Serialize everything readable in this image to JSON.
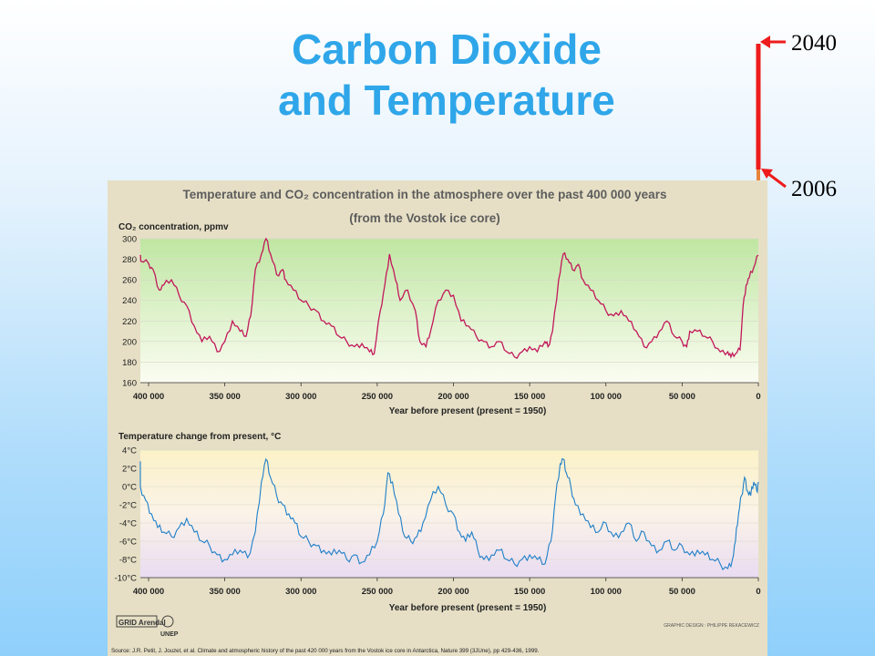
{
  "slide": {
    "title_line1": "Carbon Dioxide",
    "title_line2": "and Temperature",
    "year_top": "2040",
    "year_bottom": "2006"
  },
  "colors": {
    "title": "#2fa6e9",
    "co2_line": "#c2185b",
    "temp_line": "#1e7fc8",
    "annotation_red": "#ee1c1c",
    "annotation_orange": "#e8833a"
  },
  "figure": {
    "title_line1": "Temperature and CO₂ concentration in the atmosphere over the past 400 000 years",
    "title_line2": "(from the Vostok ice core)",
    "source": "Source: J.R. Petit, J. Jouzel, et al. Climate and atmospheric history of the past 420 000 years from the Vostok ice core in Antarctica, Nature 399 (3JUne), pp 429-436, 1999.",
    "credit": "GRAPHIC DESIGN : PHILIPPE REKACEWICZ",
    "logo1": "GRID Arendal",
    "logo2": "UNEP"
  },
  "chart_data": [
    {
      "type": "line",
      "title": "CO₂ concentration, ppmv",
      "xlabel": "Year before present (present = 1950)",
      "ylabel": "CO₂ concentration, ppmv",
      "xlim": [
        400000,
        0
      ],
      "ylim": [
        160,
        300
      ],
      "xticks": [
        "400 000",
        "350 000",
        "300 000",
        "250 000",
        "200 000",
        "150 000",
        "100 000",
        "50 000",
        "0"
      ],
      "yticks": [
        "300",
        "280",
        "260",
        "240",
        "220",
        "200",
        "180",
        "160"
      ],
      "series": [
        {
          "x": [
            412000,
            405000,
            400000,
            397000,
            393000,
            390000,
            385000,
            380000,
            375000,
            370000,
            365000,
            360000,
            355000,
            350000,
            345000,
            340000,
            336000,
            333000,
            330000,
            326000,
            323000,
            320000,
            316000,
            312000,
            310000,
            305000,
            300000,
            295000,
            290000,
            285000,
            280000,
            275000,
            270000,
            265000,
            260000,
            255000,
            252000,
            248000,
            245000,
            242000,
            238000,
            235000,
            230000,
            225000,
            222000,
            218000,
            215000,
            210000,
            205000,
            200000,
            195000,
            190000,
            185000,
            180000,
            175000,
            170000,
            165000,
            160000,
            155000,
            150000,
            145000,
            140000,
            138000,
            135000,
            131000,
            128000,
            125000,
            122000,
            118000,
            115000,
            110000,
            105000,
            100000,
            95000,
            90000,
            85000,
            80000,
            75000,
            70000,
            65000,
            60000,
            55000,
            50000,
            47000,
            45000,
            40000,
            35000,
            30000,
            25000,
            20000,
            18000,
            15000,
            12000,
            10000,
            8000,
            6000,
            3000,
            0
          ],
          "y": [
            283,
            278,
            276,
            270,
            250,
            255,
            260,
            245,
            235,
            215,
            200,
            205,
            190,
            200,
            220,
            210,
            205,
            225,
            270,
            285,
            300,
            285,
            265,
            270,
            260,
            250,
            240,
            235,
            230,
            220,
            215,
            205,
            200,
            195,
            198,
            190,
            188,
            230,
            255,
            285,
            260,
            240,
            250,
            230,
            200,
            195,
            210,
            240,
            250,
            245,
            220,
            215,
            205,
            200,
            195,
            200,
            190,
            185,
            190,
            195,
            190,
            200,
            195,
            210,
            260,
            285,
            280,
            270,
            275,
            260,
            250,
            240,
            230,
            225,
            230,
            220,
            210,
            195,
            200,
            210,
            220,
            205,
            200,
            195,
            210,
            210,
            205,
            200,
            190,
            190,
            185,
            188,
            192,
            235,
            255,
            262,
            272,
            284
          ]
        }
      ]
    },
    {
      "type": "line",
      "title": "Temperature change from present, °C",
      "xlabel": "Year before present (present = 1950)",
      "ylabel": "Temperature change from present, °C",
      "xlim": [
        400000,
        0
      ],
      "ylim": [
        -10,
        4
      ],
      "xticks": [
        "400 000",
        "350 000",
        "300 000",
        "250 000",
        "200 000",
        "150 000",
        "100 000",
        "50 000",
        "0"
      ],
      "yticks": [
        "4°C",
        "2°C",
        "0°C",
        "-2°C",
        "-4°C",
        "-6°C",
        "-8°C",
        "-10°C"
      ],
      "series": [
        {
          "x": [
            412000,
            410000,
            406000,
            402000,
            398000,
            394000,
            390000,
            385000,
            380000,
            375000,
            370000,
            365000,
            360000,
            355000,
            350000,
            345000,
            340000,
            335000,
            330000,
            326000,
            323000,
            320000,
            316000,
            312000,
            308000,
            304000,
            300000,
            295000,
            290000,
            285000,
            280000,
            275000,
            270000,
            265000,
            260000,
            255000,
            250000,
            246000,
            243000,
            240000,
            236000,
            232000,
            228000,
            224000,
            220000,
            215000,
            210000,
            205000,
            200000,
            196000,
            192000,
            188000,
            184000,
            180000,
            175000,
            170000,
            165000,
            160000,
            155000,
            150000,
            145000,
            140000,
            136000,
            133000,
            130000,
            128000,
            126000,
            123000,
            120000,
            115000,
            110000,
            105000,
            100000,
            95000,
            90000,
            85000,
            80000,
            75000,
            70000,
            65000,
            60000,
            55000,
            50000,
            45000,
            40000,
            35000,
            30000,
            25000,
            20000,
            17000,
            15000,
            13000,
            11000,
            9000,
            7000,
            5000,
            3000,
            1000,
            0
          ],
          "y": [
            2.5,
            2.0,
            0.0,
            -1.5,
            -3.0,
            -4.5,
            -5.0,
            -5.5,
            -4.5,
            -3.5,
            -5.0,
            -6.0,
            -6.5,
            -7.5,
            -8.0,
            -7.5,
            -7.0,
            -7.8,
            -5.0,
            0.5,
            3.0,
            1.0,
            -1.0,
            -2.0,
            -3.0,
            -4.0,
            -5.5,
            -6.0,
            -6.5,
            -7.0,
            -7.5,
            -7.0,
            -8.0,
            -7.5,
            -8.3,
            -7.5,
            -6.0,
            -3.0,
            1.5,
            0.5,
            -3.0,
            -5.5,
            -6.0,
            -5.5,
            -4.0,
            -1.5,
            0.0,
            -2.0,
            -3.0,
            -5.0,
            -6.0,
            -5.0,
            -7.0,
            -8.0,
            -7.5,
            -7.0,
            -8.0,
            -8.5,
            -8.0,
            -7.5,
            -8.0,
            -8.5,
            -6.0,
            -1.0,
            2.5,
            3.0,
            1.5,
            0.0,
            -2.0,
            -3.0,
            -4.5,
            -5.0,
            -4.0,
            -5.5,
            -5.0,
            -4.0,
            -6.0,
            -5.0,
            -6.5,
            -7.0,
            -6.0,
            -7.0,
            -6.5,
            -7.5,
            -7.0,
            -7.5,
            -8.0,
            -8.5,
            -9.0,
            -8.0,
            -6.0,
            -3.0,
            -1.0,
            1.0,
            -0.5,
            -1.0,
            0.5,
            -0.5,
            0.5
          ]
        }
      ]
    }
  ]
}
